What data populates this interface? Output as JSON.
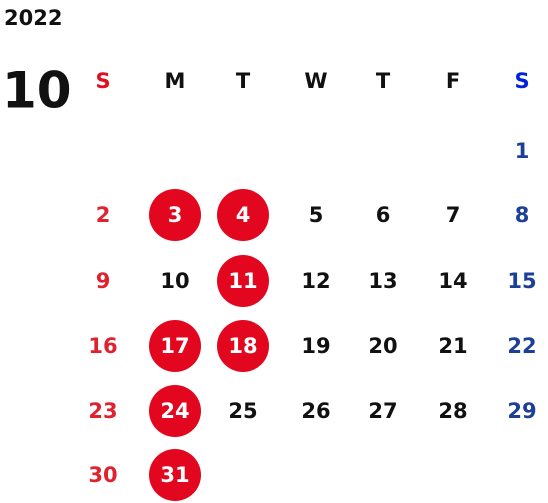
{
  "year": "2022",
  "month": "10",
  "weekdays": [
    "S",
    "M",
    "T",
    "W",
    "T",
    "F",
    "S"
  ],
  "weeks": [
    [
      null,
      null,
      null,
      null,
      null,
      null,
      {
        "label": "1"
      }
    ],
    [
      {
        "label": "2"
      },
      {
        "label": "3",
        "circled": true
      },
      {
        "label": "4",
        "circled": true
      },
      {
        "label": "5"
      },
      {
        "label": "6"
      },
      {
        "label": "7"
      },
      {
        "label": "8"
      }
    ],
    [
      {
        "label": "9"
      },
      {
        "label": "10"
      },
      {
        "label": "11",
        "circled": true
      },
      {
        "label": "12"
      },
      {
        "label": "13"
      },
      {
        "label": "14"
      },
      {
        "label": "15"
      }
    ],
    [
      {
        "label": "16"
      },
      {
        "label": "17",
        "circled": true
      },
      {
        "label": "18",
        "circled": true
      },
      {
        "label": "19"
      },
      {
        "label": "20"
      },
      {
        "label": "21"
      },
      {
        "label": "22"
      }
    ],
    [
      {
        "label": "23"
      },
      {
        "label": "24",
        "circled": true
      },
      {
        "label": "25"
      },
      {
        "label": "26"
      },
      {
        "label": "27"
      },
      {
        "label": "28"
      },
      {
        "label": "29"
      }
    ],
    [
      {
        "label": "30"
      },
      {
        "label": "31",
        "circled": true
      },
      null,
      null,
      null,
      null,
      null
    ]
  ]
}
